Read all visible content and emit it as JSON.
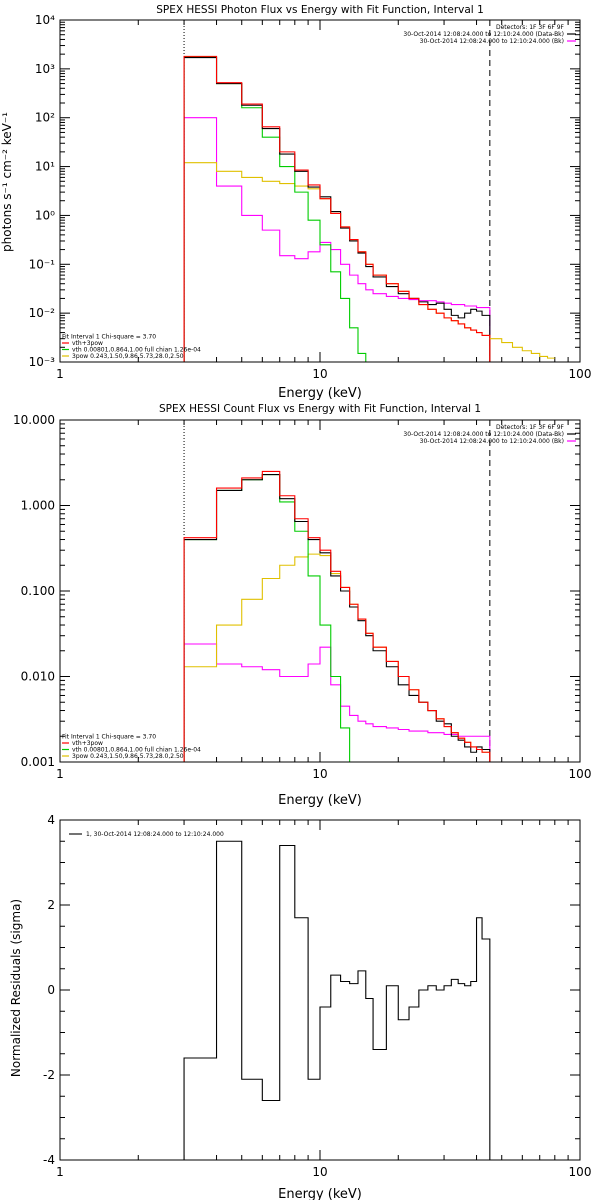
{
  "chart_data": [
    {
      "type": "line",
      "title": "SPEX HESSI Photon Flux vs Energy with Fit Function, Interval 1",
      "xlabel": "Energy (keV)",
      "ylabel": "photons s⁻¹ cm⁻² keV⁻¹",
      "xscale": "log",
      "yscale": "log",
      "xlim": [
        1,
        100
      ],
      "ylim": [
        0.001,
        10000
      ],
      "xticks": [
        1,
        10,
        100
      ],
      "xtick_labels": [
        "1",
        "10",
        "100"
      ],
      "yticks": [
        0.001,
        0.01,
        0.1,
        1,
        10,
        100,
        1000,
        10000
      ],
      "ytick_labels": [
        "10⁻³",
        "10⁻²",
        "10⁻¹",
        "10⁰",
        "10¹",
        "10²",
        "10³",
        "10⁴"
      ],
      "legend_top": [
        {
          "text": "Detectors: 1F 3F 6F 9F",
          "color": null
        },
        {
          "text": "30-Oct-2014 12:08:24.000 to 12:10:24.000 (Data-Bk)",
          "color": "#000000"
        },
        {
          "text": "30-Oct-2014 12:08:24.000 to 12:10:24.000 (Bk)",
          "color": "#ff00ff"
        }
      ],
      "legend_bottom": [
        {
          "text": "Fit Interval 1    Chi-square = 3.70",
          "color": null
        },
        {
          "text": "vth+3pow",
          "color": "#ff0000"
        },
        {
          "text": "vth 0.00801,0.864,1.00   full chian 1.26e-04",
          "color": "#00cc00"
        },
        {
          "text": "3pow 0.243,1.50,9.86,5.73,28.0,2.50",
          "color": "#e0c000"
        }
      ],
      "vlines": [
        {
          "x": 3,
          "style": "dotted"
        },
        {
          "x": 45,
          "style": "dashed"
        }
      ],
      "bin_edges": [
        3,
        4,
        5,
        6,
        7,
        8,
        9,
        10,
        11,
        12,
        13,
        14,
        15,
        16,
        18,
        20,
        22,
        24,
        26,
        28,
        30,
        32,
        34,
        36,
        38,
        40,
        42,
        45
      ],
      "series": [
        {
          "name": "data",
          "color": "#000000",
          "values": [
            1700,
            500,
            180,
            60,
            18,
            8,
            3.8,
            2.4,
            1.2,
            0.55,
            0.3,
            0.17,
            0.09,
            0.055,
            0.035,
            0.025,
            0.02,
            0.017,
            0.015,
            0.016,
            0.012,
            0.009,
            0.008,
            0.01,
            0.012,
            0.011,
            0.009
          ]
        },
        {
          "name": "vth+3pow",
          "color": "#ff0000",
          "values": [
            1800,
            520,
            190,
            65,
            20,
            8.5,
            4.2,
            2.2,
            1.1,
            0.58,
            0.32,
            0.18,
            0.1,
            0.06,
            0.04,
            0.028,
            0.02,
            0.015,
            0.012,
            0.01,
            0.008,
            0.007,
            0.006,
            0.005,
            0.0045,
            0.004,
            0.0035
          ]
        },
        {
          "name": "vth",
          "color": "#00cc00",
          "values": [
            1750,
            500,
            160,
            40,
            10,
            3,
            0.8,
            0.25,
            0.07,
            0.02,
            0.005,
            0.0015,
            0.0004
          ]
        },
        {
          "name": "3pow",
          "color": "#e0c000",
          "values": [
            12,
            8,
            6,
            5,
            4.5,
            4,
            3.5,
            2.2,
            1.1,
            0.58,
            0.32,
            0.18,
            0.1,
            0.06,
            0.04,
            0.028,
            0.02,
            0.015,
            0.012,
            0.01,
            0.008,
            0.007,
            0.006,
            0.005,
            0.0045,
            0.004,
            0.0035
          ]
        },
        {
          "name": "background",
          "color": "#ff00ff",
          "values": [
            100,
            4,
            1,
            0.5,
            0.15,
            0.13,
            0.18,
            0.28,
            0.2,
            0.1,
            0.06,
            0.04,
            0.03,
            0.025,
            0.022,
            0.02,
            0.019,
            0.018,
            0.018,
            0.017,
            0.016,
            0.015,
            0.015,
            0.014,
            0.014,
            0.013,
            0.013
          ]
        }
      ],
      "tail": {
        "edges": [
          45,
          50,
          55,
          60,
          65,
          70,
          75,
          80
        ],
        "color": "#e0c000",
        "values": [
          0.003,
          0.0025,
          0.002,
          0.0017,
          0.0015,
          0.0013,
          0.0012
        ]
      }
    },
    {
      "type": "line",
      "title": "SPEX HESSI Count Flux vs Energy with Fit Function, Interval 1",
      "xlabel": "Energy (keV)",
      "ylabel": "",
      "xscale": "log",
      "yscale": "log",
      "xlim": [
        1,
        100
      ],
      "ylim": [
        0.001,
        10
      ],
      "xticks": [
        1,
        10,
        100
      ],
      "xtick_labels": [
        "1",
        "10",
        "100"
      ],
      "yticks": [
        0.001,
        0.01,
        0.1,
        1,
        10
      ],
      "ytick_labels": [
        "0.001",
        "0.010",
        "0.100",
        "1.000",
        "10.000"
      ],
      "legend_top": [
        {
          "text": "Detectors: 1F 3F 6F 9F",
          "color": null
        },
        {
          "text": "30-Oct-2014 12:08:24.000 to 12:10:24.000 (Data-Bk)",
          "color": "#000000"
        },
        {
          "text": "30-Oct-2014 12:08:24.000 to 12:10:24.000 (Bk)",
          "color": "#ff00ff"
        }
      ],
      "legend_bottom": [
        {
          "text": "Fit Interval 1    Chi-square = 3.70",
          "color": null
        },
        {
          "text": "vth+3pow",
          "color": "#ff0000"
        },
        {
          "text": "vth 0.00801,0.864,1.00   full chian 1.26e-04",
          "color": "#00cc00"
        },
        {
          "text": "3pow 0.243,1.50,9.86,5.73,28.0,2.50",
          "color": "#e0c000"
        }
      ],
      "vlines": [
        {
          "x": 3,
          "style": "dotted"
        },
        {
          "x": 45,
          "style": "dashed"
        }
      ],
      "bin_edges": [
        3,
        4,
        5,
        6,
        7,
        8,
        9,
        10,
        11,
        12,
        13,
        14,
        15,
        16,
        18,
        20,
        22,
        24,
        26,
        28,
        30,
        32,
        34,
        36,
        38,
        40,
        42,
        45
      ],
      "series": [
        {
          "name": "data",
          "color": "#000000",
          "values": [
            0.4,
            1.5,
            2.0,
            2.3,
            1.2,
            0.65,
            0.4,
            0.28,
            0.15,
            0.1,
            0.065,
            0.045,
            0.03,
            0.02,
            0.013,
            0.008,
            0.006,
            0.005,
            0.004,
            0.003,
            0.0028,
            0.002,
            0.0018,
            0.0015,
            0.0013,
            0.0015,
            0.0014
          ]
        },
        {
          "name": "vth+3pow",
          "color": "#ff0000",
          "values": [
            0.42,
            1.6,
            2.1,
            2.5,
            1.3,
            0.7,
            0.42,
            0.3,
            0.17,
            0.11,
            0.07,
            0.047,
            0.032,
            0.022,
            0.015,
            0.01,
            0.007,
            0.005,
            0.004,
            0.0032,
            0.0026,
            0.0022,
            0.0019,
            0.0017,
            0.0015,
            0.0014,
            0.0013
          ]
        },
        {
          "name": "vth",
          "color": "#00cc00",
          "values": [
            0.4,
            1.5,
            2.0,
            2.3,
            1.1,
            0.5,
            0.15,
            0.04,
            0.01,
            0.0025,
            0.0007
          ]
        },
        {
          "name": "3pow",
          "color": "#e0c000",
          "values": [
            0.013,
            0.04,
            0.08,
            0.14,
            0.2,
            0.25,
            0.27,
            0.26,
            0.16,
            0.11,
            0.07,
            0.047,
            0.032,
            0.022,
            0.015,
            0.01,
            0.007,
            0.005,
            0.004,
            0.0032,
            0.0026,
            0.0022,
            0.0019,
            0.0017,
            0.0015,
            0.0014,
            0.0013
          ]
        },
        {
          "name": "background",
          "color": "#ff00ff",
          "values": [
            0.024,
            0.014,
            0.013,
            0.012,
            0.01,
            0.01,
            0.014,
            0.022,
            0.008,
            0.0045,
            0.0035,
            0.003,
            0.0028,
            0.0026,
            0.0025,
            0.0024,
            0.0023,
            0.0023,
            0.0022,
            0.0022,
            0.0021,
            0.0021,
            0.002,
            0.002,
            0.002,
            0.002,
            0.002
          ]
        }
      ],
      "tail": {
        "edges": [
          45,
          50,
          55
        ],
        "color": "#e0c000",
        "values": [
          0.0009,
          0.0007
        ]
      }
    },
    {
      "type": "line",
      "title": "",
      "xlabel": "Energy (keV)",
      "ylabel": "Normalized Residuals (sigma)",
      "xscale": "log",
      "yscale": "linear",
      "xlim": [
        1,
        100
      ],
      "ylim": [
        -4,
        4
      ],
      "xticks": [
        1,
        10,
        100
      ],
      "xtick_labels": [
        "1",
        "10",
        "100"
      ],
      "yticks": [
        -4,
        -2,
        0,
        2,
        4
      ],
      "ytick_labels": [
        "-4",
        "-2",
        "0",
        "2",
        "4"
      ],
      "legend_top_left": "1, 30-Oct-2014 12:08:24.000 to 12:10:24.000",
      "bin_edges": [
        3,
        4,
        5,
        6,
        7,
        8,
        9,
        10,
        11,
        12,
        13,
        14,
        15,
        16,
        18,
        20,
        22,
        24,
        26,
        28,
        30,
        32,
        34,
        36,
        38,
        40,
        42,
        45
      ],
      "series": [
        {
          "name": "residuals",
          "color": "#000000",
          "values": [
            -1.6,
            3.5,
            -2.1,
            -2.6,
            3.4,
            1.7,
            -2.1,
            -0.4,
            0.35,
            0.2,
            0.15,
            0.45,
            -0.2,
            -1.4,
            0.1,
            -0.7,
            -0.4,
            0.0,
            0.1,
            0.0,
            0.1,
            0.25,
            0.15,
            0.1,
            0.2,
            1.7,
            1.2
          ]
        }
      ]
    }
  ]
}
